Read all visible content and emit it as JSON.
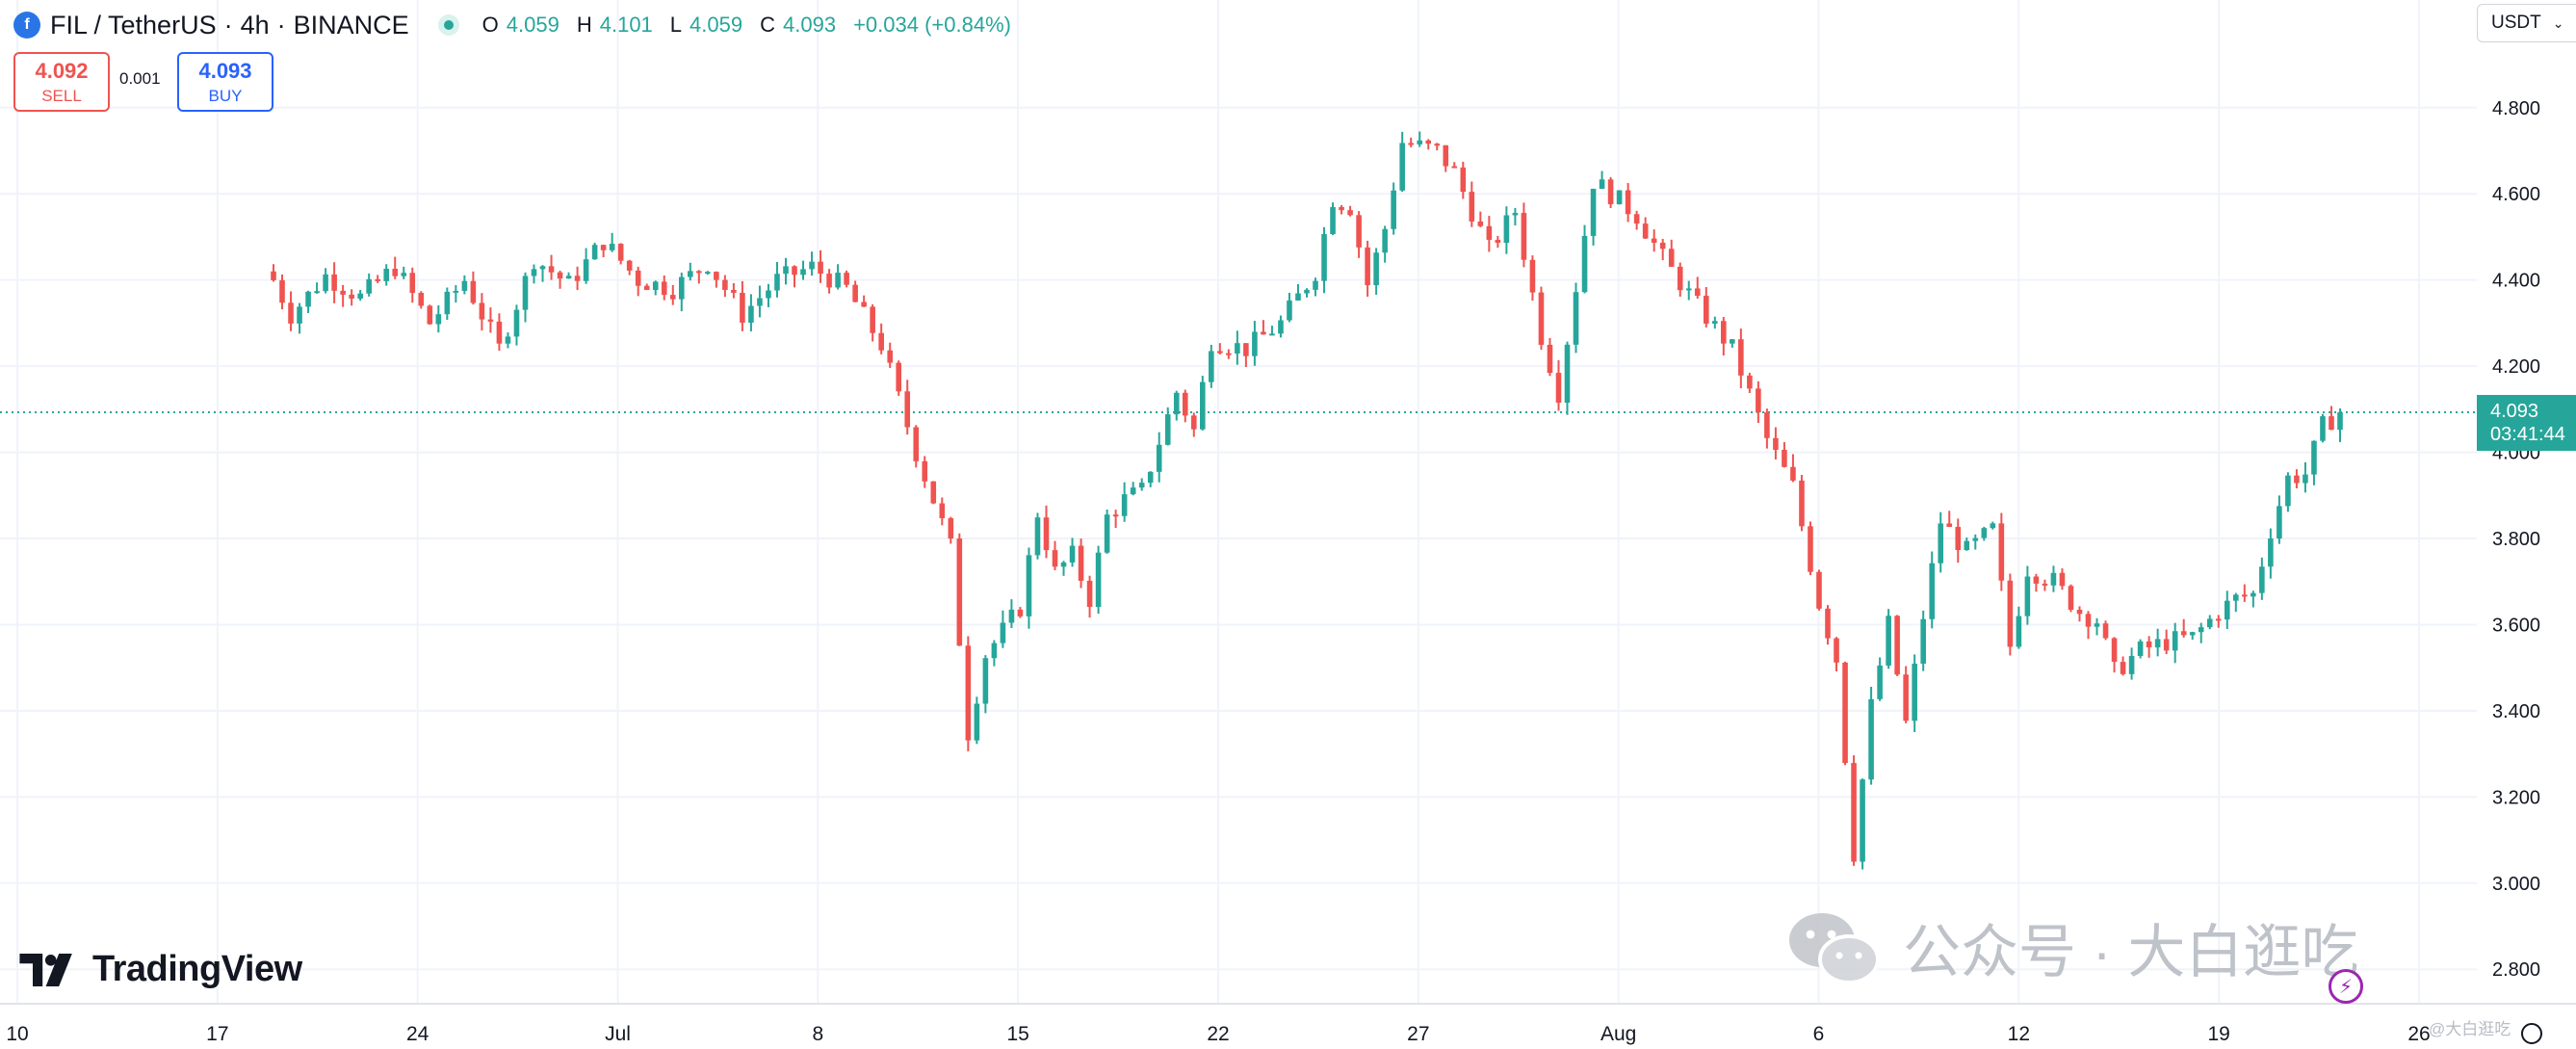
{
  "header": {
    "symbol": "FIL / TetherUS",
    "interval": "4h",
    "exchange": "BINANCE",
    "separator": "·",
    "ohlc": {
      "o_label": "O",
      "o_value": "4.059",
      "h_label": "H",
      "h_value": "4.101",
      "l_label": "L",
      "l_value": "4.059",
      "c_label": "C",
      "c_value": "4.093",
      "change": "+0.034 (+0.84%)"
    }
  },
  "trade": {
    "sell_price": "4.092",
    "sell_label": "SELL",
    "spread": "0.001",
    "buy_price": "4.093",
    "buy_label": "BUY"
  },
  "currency": "USDT",
  "last_price": {
    "price": "4.093",
    "countdown": "03:41:44"
  },
  "brand": {
    "logo_text": "TradingView"
  },
  "watermark": {
    "text": "公众号 · 大白逛吃",
    "small": "@大白逛吃"
  },
  "colors": {
    "up": "#26a69a",
    "down": "#ef5350",
    "grid": "#f0f3fa",
    "axis_text": "#131722"
  },
  "icons": [
    "fil-coin-icon",
    "market-status-icon",
    "tradingview-logo-icon",
    "wechat-icon",
    "lightning-icon",
    "chevron-down-icon",
    "settings-icon"
  ],
  "chart_data": {
    "type": "candlestick",
    "timeframe": "4h",
    "y_axis": {
      "ticks": [
        "4.800",
        "4.600",
        "4.400",
        "4.200",
        "4.000",
        "3.800",
        "3.600",
        "3.400",
        "3.200",
        "3.000",
        "2.800"
      ],
      "range": [
        2.72,
        5.05
      ]
    },
    "x_axis": {
      "tick_labels": [
        "10",
        "17",
        "24",
        "Jul",
        "8",
        "15",
        "22",
        "27",
        "Aug",
        "6",
        "12",
        "19",
        "26"
      ]
    },
    "grid": true,
    "last_price_line": 4.093,
    "price_path": [
      {
        "i": 0,
        "p": 4.4
      },
      {
        "i": 2,
        "p": 4.32
      },
      {
        "i": 6,
        "p": 4.41
      },
      {
        "i": 10,
        "p": 4.36
      },
      {
        "i": 14,
        "p": 4.43
      },
      {
        "i": 18,
        "p": 4.3
      },
      {
        "i": 22,
        "p": 4.4
      },
      {
        "i": 26,
        "p": 4.24
      },
      {
        "i": 30,
        "p": 4.45
      },
      {
        "i": 34,
        "p": 4.39
      },
      {
        "i": 38,
        "p": 4.49
      },
      {
        "i": 42,
        "p": 4.4
      },
      {
        "i": 46,
        "p": 4.38
      },
      {
        "i": 50,
        "p": 4.44
      },
      {
        "i": 54,
        "p": 4.32
      },
      {
        "i": 58,
        "p": 4.4
      },
      {
        "i": 62,
        "p": 4.43
      },
      {
        "i": 66,
        "p": 4.38
      },
      {
        "i": 70,
        "p": 4.25
      },
      {
        "i": 74,
        "p": 4.0
      },
      {
        "i": 78,
        "p": 3.78
      },
      {
        "i": 80,
        "p": 3.35
      },
      {
        "i": 82,
        "p": 3.53
      },
      {
        "i": 86,
        "p": 3.64
      },
      {
        "i": 88,
        "p": 3.86
      },
      {
        "i": 90,
        "p": 3.72
      },
      {
        "i": 92,
        "p": 3.76
      },
      {
        "i": 94,
        "p": 3.66
      },
      {
        "i": 96,
        "p": 3.85
      },
      {
        "i": 98,
        "p": 3.89
      },
      {
        "i": 100,
        "p": 3.91
      },
      {
        "i": 104,
        "p": 4.14
      },
      {
        "i": 106,
        "p": 4.05
      },
      {
        "i": 108,
        "p": 4.26
      },
      {
        "i": 112,
        "p": 4.24
      },
      {
        "i": 116,
        "p": 4.3
      },
      {
        "i": 120,
        "p": 4.42
      },
      {
        "i": 122,
        "p": 4.59
      },
      {
        "i": 124,
        "p": 4.57
      },
      {
        "i": 126,
        "p": 4.39
      },
      {
        "i": 128,
        "p": 4.52
      },
      {
        "i": 130,
        "p": 4.72
      },
      {
        "i": 134,
        "p": 4.7
      },
      {
        "i": 136,
        "p": 4.65
      },
      {
        "i": 140,
        "p": 4.47
      },
      {
        "i": 143,
        "p": 4.56
      },
      {
        "i": 146,
        "p": 4.27
      },
      {
        "i": 148,
        "p": 4.14
      },
      {
        "i": 152,
        "p": 4.63
      },
      {
        "i": 154,
        "p": 4.6
      },
      {
        "i": 157,
        "p": 4.55
      },
      {
        "i": 160,
        "p": 4.45
      },
      {
        "i": 164,
        "p": 4.34
      },
      {
        "i": 168,
        "p": 4.24
      },
      {
        "i": 172,
        "p": 4.03
      },
      {
        "i": 175,
        "p": 3.92
      },
      {
        "i": 178,
        "p": 3.65
      },
      {
        "i": 180,
        "p": 3.52
      },
      {
        "i": 182,
        "p": 3.07
      },
      {
        "i": 184,
        "p": 3.41
      },
      {
        "i": 186,
        "p": 3.6
      },
      {
        "i": 188,
        "p": 3.37
      },
      {
        "i": 190,
        "p": 3.62
      },
      {
        "i": 192,
        "p": 3.84
      },
      {
        "i": 195,
        "p": 3.77
      },
      {
        "i": 198,
        "p": 3.82
      },
      {
        "i": 200,
        "p": 3.55
      },
      {
        "i": 202,
        "p": 3.73
      },
      {
        "i": 205,
        "p": 3.7
      },
      {
        "i": 208,
        "p": 3.63
      },
      {
        "i": 210,
        "p": 3.61
      },
      {
        "i": 212,
        "p": 3.49
      },
      {
        "i": 215,
        "p": 3.54
      },
      {
        "i": 218,
        "p": 3.56
      },
      {
        "i": 221,
        "p": 3.57
      },
      {
        "i": 224,
        "p": 3.63
      },
      {
        "i": 226,
        "p": 3.66
      },
      {
        "i": 228,
        "p": 3.67
      },
      {
        "i": 230,
        "p": 3.82
      },
      {
        "i": 232,
        "p": 3.94
      },
      {
        "i": 234,
        "p": 3.95
      },
      {
        "i": 236,
        "p": 4.06
      },
      {
        "i": 238,
        "p": 4.093
      }
    ]
  }
}
